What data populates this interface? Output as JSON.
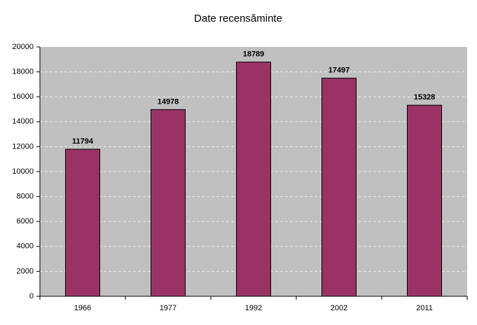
{
  "chart_data": {
    "type": "bar",
    "title": "Date recensăminte",
    "categories": [
      "1966",
      "1977",
      "1992",
      "2002",
      "2011"
    ],
    "values": [
      11794,
      14978,
      18789,
      17497,
      15328
    ],
    "color": "#993366",
    "ylim": [
      0,
      20000
    ],
    "yticks": [
      0,
      2000,
      4000,
      6000,
      8000,
      10000,
      12000,
      14000,
      16000,
      18000,
      20000
    ],
    "grid": true
  }
}
